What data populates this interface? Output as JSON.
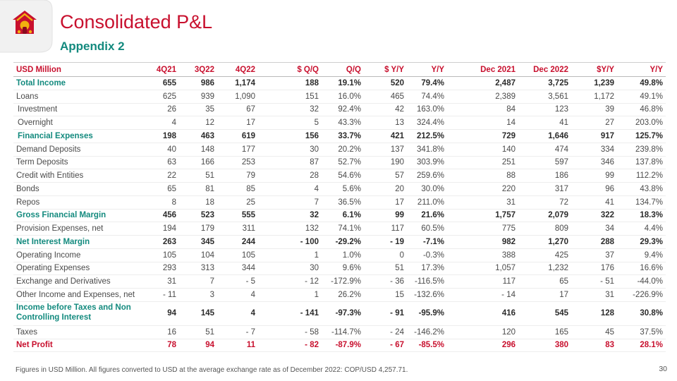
{
  "header": {
    "title": "Consolidated P&L",
    "subtitle": "Appendix 2"
  },
  "table": {
    "columns": [
      "USD Million",
      "4Q21",
      "3Q22",
      "4Q22",
      "$ Q/Q",
      "Q/Q",
      "$ Y/Y",
      "Y/Y",
      "Dec 2021",
      "Dec 2022",
      "$Y/Y",
      "Y/Y"
    ],
    "rows": [
      {
        "style": "bold",
        "cells": [
          "Total Income",
          "655",
          "986",
          "1,174",
          "188",
          "19.1%",
          "520",
          "79.4%",
          "2,487",
          "3,725",
          "1,239",
          "49.8%"
        ]
      },
      {
        "style": "normal",
        "cells": [
          "Loans",
          "625",
          "939",
          "1,090",
          "151",
          "16.0%",
          "465",
          "74.4%",
          "2,389",
          "3,561",
          "1,172",
          "49.1%"
        ]
      },
      {
        "style": "indent",
        "cells": [
          "Investment",
          "26",
          "35",
          "67",
          "32",
          "92.4%",
          "42",
          "163.0%",
          "84",
          "123",
          "39",
          "46.8%"
        ]
      },
      {
        "style": "indent",
        "cells": [
          "Overnight",
          "4",
          "12",
          "17",
          "5",
          "43.3%",
          "13",
          "324.4%",
          "14",
          "41",
          "27",
          "203.0%"
        ]
      },
      {
        "style": "bold-indent",
        "cells": [
          "Financial Expenses",
          "198",
          "463",
          "619",
          "156",
          "33.7%",
          "421",
          "212.5%",
          "729",
          "1,646",
          "917",
          "125.7%"
        ]
      },
      {
        "style": "normal",
        "cells": [
          "Demand Deposits",
          "40",
          "148",
          "177",
          "30",
          "20.2%",
          "137",
          "341.8%",
          "140",
          "474",
          "334",
          "239.8%"
        ]
      },
      {
        "style": "normal",
        "cells": [
          "Term Deposits",
          "63",
          "166",
          "253",
          "87",
          "52.7%",
          "190",
          "303.9%",
          "251",
          "597",
          "346",
          "137.8%"
        ]
      },
      {
        "style": "normal",
        "cells": [
          "Credit with Entities",
          "22",
          "51",
          "79",
          "28",
          "54.6%",
          "57",
          "259.6%",
          "88",
          "186",
          "99",
          "112.2%"
        ]
      },
      {
        "style": "normal",
        "cells": [
          "Bonds",
          "65",
          "81",
          "85",
          "4",
          "5.6%",
          "20",
          "30.0%",
          "220",
          "317",
          "96",
          "43.8%"
        ]
      },
      {
        "style": "normal",
        "cells": [
          "Repos",
          "8",
          "18",
          "25",
          "7",
          "36.5%",
          "17",
          "211.0%",
          "31",
          "72",
          "41",
          "134.7%"
        ]
      },
      {
        "style": "bold",
        "cells": [
          "Gross Financial Margin",
          "456",
          "523",
          "555",
          "32",
          "6.1%",
          "99",
          "21.6%",
          "1,757",
          "2,079",
          "322",
          "18.3%"
        ]
      },
      {
        "style": "normal",
        "cells": [
          "Provision Expenses, net",
          "194",
          "179",
          "311",
          "132",
          "74.1%",
          "117",
          "60.5%",
          "775",
          "809",
          "34",
          "4.4%"
        ]
      },
      {
        "style": "bold",
        "cells": [
          "Net Interest Margin",
          "263",
          "345",
          "244",
          "- 100",
          "-29.2%",
          "- 19",
          "-7.1%",
          "982",
          "1,270",
          "288",
          "29.3%"
        ]
      },
      {
        "style": "normal",
        "cells": [
          "Operating Income",
          "105",
          "104",
          "105",
          "1",
          "1.0%",
          "0",
          "-0.3%",
          "388",
          "425",
          "37",
          "9.4%"
        ]
      },
      {
        "style": "normal",
        "cells": [
          "Operating Expenses",
          "293",
          "313",
          "344",
          "30",
          "9.6%",
          "51",
          "17.3%",
          "1,057",
          "1,232",
          "176",
          "16.6%"
        ]
      },
      {
        "style": "normal",
        "cells": [
          "Exchange and Derivatives",
          "31",
          "7",
          "- 5",
          "- 12",
          "-172.9%",
          "- 36",
          "-116.5%",
          "117",
          "65",
          "- 51",
          "-44.0%"
        ]
      },
      {
        "style": "normal",
        "cells": [
          "Other Income and Expenses, net",
          "- 11",
          "3",
          "4",
          "1",
          "26.2%",
          "15",
          "-132.6%",
          "- 14",
          "17",
          "31",
          "-226.9%"
        ]
      },
      {
        "style": "bold-tall",
        "cells": [
          "Income before Taxes and Non Controlling Interest",
          "94",
          "145",
          "4",
          "- 141",
          "-97.3%",
          "- 91",
          "-95.9%",
          "416",
          "545",
          "128",
          "30.8%"
        ]
      },
      {
        "style": "normal",
        "cells": [
          "Taxes",
          "16",
          "51",
          "- 7",
          "- 58",
          "-114.7%",
          "- 24",
          "-146.2%",
          "120",
          "165",
          "45",
          "37.5%"
        ]
      },
      {
        "style": "red",
        "cells": [
          "Net Profit",
          "78",
          "94",
          "11",
          "- 82",
          "-87.9%",
          "- 67",
          "-85.5%",
          "296",
          "380",
          "83",
          "28.1%"
        ]
      }
    ]
  },
  "footer": {
    "note": "Figures in USD Million. All figures converted to USD at the average exchange rate as of December 2022: COP/USD 4,257.71.",
    "page_number": "30"
  },
  "colors": {
    "brand_red": "#c8102e",
    "brand_teal": "#138a7e",
    "logo_yellow": "#f2b20f"
  },
  "icons": {
    "logo": "house-logo-icon"
  }
}
